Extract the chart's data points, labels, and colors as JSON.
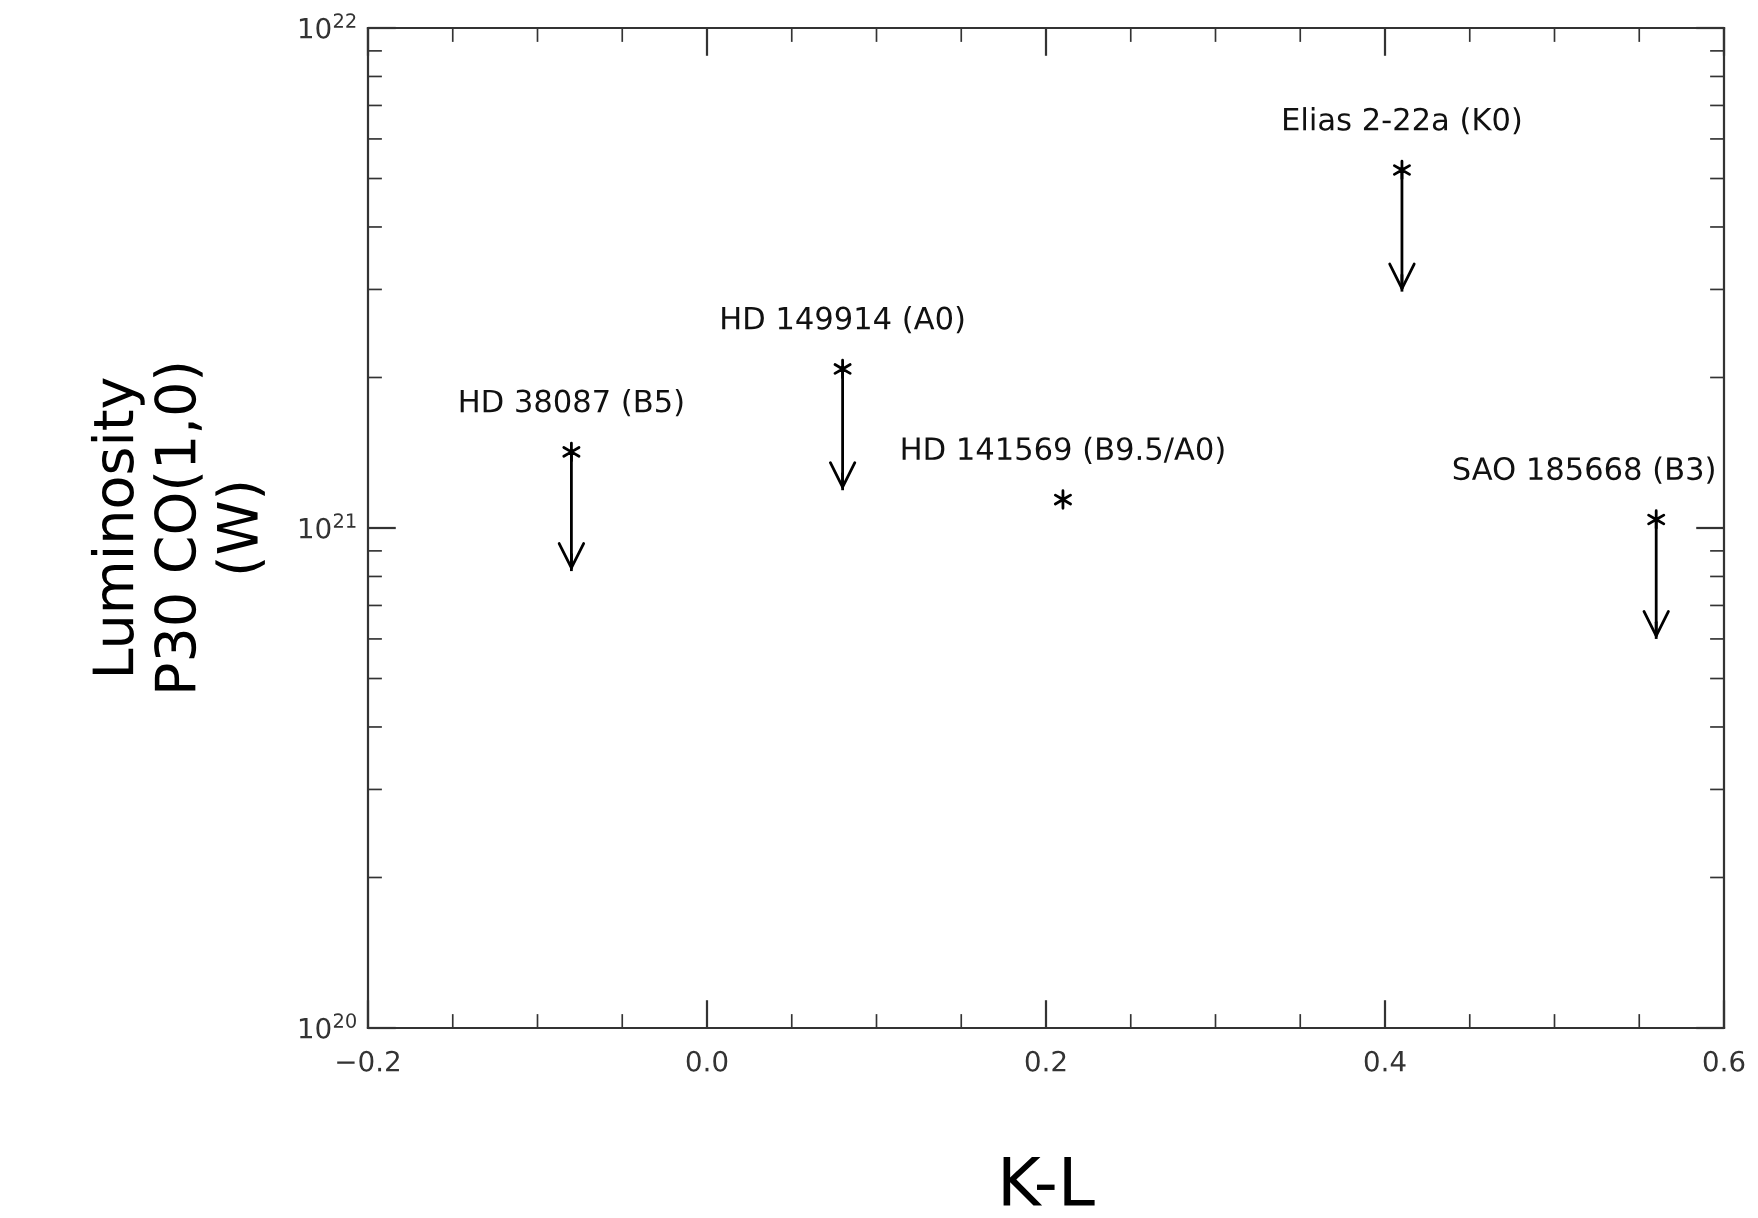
{
  "chart_data": {
    "type": "scatter",
    "xlabel": "K-L",
    "ylabel": "Luminosity\nP30 CO(1,0)\n(W)",
    "x": [
      -0.08,
      0.08,
      0.21,
      0.41,
      0.56
    ],
    "values": [
      1.42e+21,
      2.08e+21,
      1.14e+21,
      5.2e+21,
      1.04e+21
    ],
    "errors": [
      [
        8.2e+20,
        1.42e+21
      ],
      [
        1.19e+21,
        2.08e+21
      ],
      null,
      [
        2.97e+21,
        5.2e+21
      ],
      [
        6e+20,
        1.04e+21
      ]
    ],
    "color": "#000000",
    "marker": "cross",
    "log": "y",
    "grid": false,
    "xlim": [
      -0.2,
      0.6
    ],
    "xticks": [
      {
        "value": -0.2,
        "label": "−0.2"
      },
      {
        "value": 0.0,
        "label": "0.0"
      },
      {
        "value": 0.2,
        "label": "0.2"
      },
      {
        "value": 0.4,
        "label": "0.4"
      },
      {
        "value": 0.6,
        "label": "0.6"
      }
    ],
    "ylim": [
      1e+20,
      1e+22
    ],
    "yticks": [
      {
        "value": 1e+20,
        "label": "10$^{20}$"
      },
      {
        "value": 1e+21,
        "label": "10$^{21}$"
      },
      {
        "value": 1e+22,
        "label": "10$^{22}$"
      }
    ],
    "annotations": [
      {
        "text": "HD 38087 (B5)",
        "x": -0.08,
        "y": 1.42e+21
      },
      {
        "text": "HD 149914 (A0)",
        "x": 0.08,
        "y": 2.08e+21
      },
      {
        "text": "HD 141569 (B9.5/A0)",
        "x": 0.21,
        "y": 1.14e+21
      },
      {
        "text": "Elias 2-22a (K0)",
        "x": 0.41,
        "y": 5.2e+21
      },
      {
        "text": "SAO 185668 (B3)",
        "x": 0.56,
        "y": 1.04e+21
      }
    ]
  }
}
